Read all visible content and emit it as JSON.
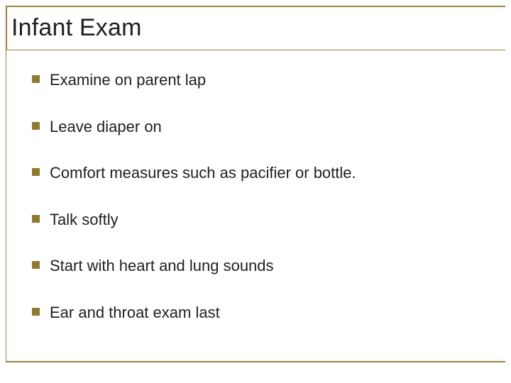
{
  "slide": {
    "title": "Infant Exam",
    "bullets": [
      {
        "text": "Examine on parent lap"
      },
      {
        "text": "Leave diaper on"
      },
      {
        "text": "Comfort measures such as pacifier or bottle."
      },
      {
        "text": "Talk softly"
      },
      {
        "text": "Start with heart and lung sounds"
      },
      {
        "text": "Ear and throat exam last"
      }
    ]
  },
  "style": {
    "accent_color": "#9a8238",
    "bullet_color": "#8f7a2f",
    "background_color": "#ffffff",
    "title_fontsize": 34,
    "body_fontsize": 22,
    "bullet_marker_size": 11,
    "font_family": "Arial"
  }
}
